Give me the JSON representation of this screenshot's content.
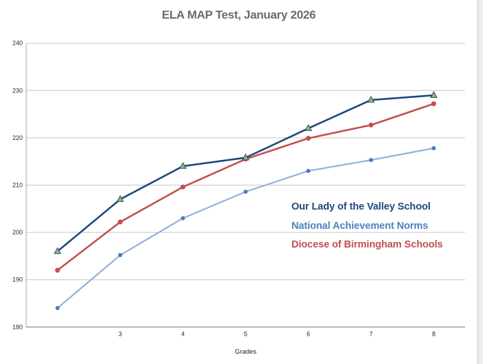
{
  "chart_data": {
    "type": "line",
    "title": "ELA MAP Test, January 2026",
    "xlabel": "Grades",
    "ylabel": "",
    "categories": [
      "",
      "3",
      "4",
      "5",
      "6",
      "7",
      "8"
    ],
    "series": [
      {
        "name": "Our Lady of the Valley School",
        "values": [
          196,
          207,
          214,
          215.8,
          222,
          228,
          229
        ],
        "line_color": "#1F497D",
        "line_width": 2.6,
        "marker": "triangle",
        "marker_fill": "#9BBB59",
        "marker_stroke": "#1F497D",
        "label_color": "#1F497D"
      },
      {
        "name": "National Achievement Norms",
        "values": [
          184,
          195.2,
          203,
          208.6,
          213,
          215.3,
          217.8
        ],
        "line_color": "#92B2DC",
        "line_width": 2.2,
        "marker": "circle",
        "marker_fill": "#4A7EBB",
        "marker_stroke": "#4A7EBB",
        "label_color": "#4F81BD"
      },
      {
        "name": "Diocese of Birmingham Schools",
        "values": [
          192,
          202.2,
          209.6,
          215.5,
          219.9,
          222.7,
          227.2
        ],
        "line_color": "#C0504D",
        "line_width": 2.6,
        "marker": "circle",
        "marker_fill": "#C0504D",
        "marker_stroke": "#C0504D",
        "label_color": "#C0504D"
      }
    ],
    "ylim": [
      180,
      240
    ],
    "y_ticks": [
      180,
      190,
      200,
      210,
      220,
      230,
      240
    ],
    "grid": true,
    "legend_position": "inside-right",
    "colors": {
      "gridline": "#c6c6c6",
      "y_axis": "#a6a6a6",
      "x_axis": "#808080",
      "tick_label": "#262626",
      "title": "#6b6b6b"
    }
  }
}
